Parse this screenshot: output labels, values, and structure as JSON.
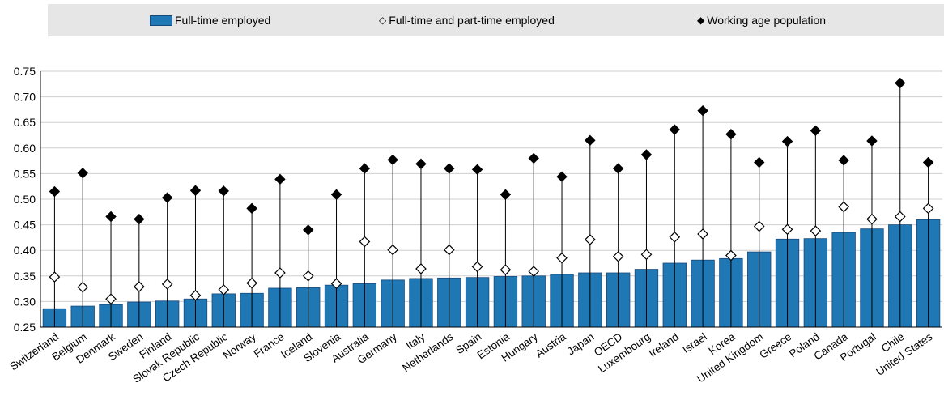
{
  "legend": {
    "series0": "Full-time employed",
    "series1": "Full-time and part-time employed",
    "series2": "Working age population"
  },
  "chart_data": {
    "type": "bar",
    "title": "",
    "xlabel": "",
    "ylabel": "",
    "ylim": [
      0.25,
      0.75
    ],
    "yticks": [
      "0.25",
      "0.30",
      "0.35",
      "0.40",
      "0.45",
      "0.50",
      "0.55",
      "0.60",
      "0.65",
      "0.70",
      "0.75"
    ],
    "grid": true,
    "legend_position": "top",
    "categories": [
      "Switzerland",
      "Belgium",
      "Denmark",
      "Sweden",
      "Finland",
      "Slovak Republic",
      "Czech Republic",
      "Norway",
      "France",
      "Iceland",
      "Slovenia",
      "Australia",
      "Germany",
      "Italy",
      "Netherlands",
      "Spain",
      "Estonia",
      "Hungary",
      "Austria",
      "Japan",
      "OECD",
      "Luxembourg",
      "Ireland",
      "Israel",
      "Korea",
      "United Kingdom",
      "Greece",
      "Poland",
      "Canada",
      "Portugal",
      "Chile",
      "United States"
    ],
    "series": [
      {
        "name": "Full-time employed",
        "mark": "bar",
        "color": "#1f77b4",
        "values": [
          0.286,
          0.291,
          0.294,
          0.299,
          0.301,
          0.305,
          0.315,
          0.316,
          0.326,
          0.327,
          0.332,
          0.335,
          0.342,
          0.345,
          0.346,
          0.347,
          0.349,
          0.35,
          0.353,
          0.356,
          0.356,
          0.363,
          0.375,
          0.381,
          0.384,
          0.397,
          0.422,
          0.423,
          0.435,
          0.442,
          0.45,
          0.46
        ]
      },
      {
        "name": "Full-time and part-time employed",
        "mark": "hollow-diamond",
        "color": "#000000",
        "values": [
          0.348,
          0.328,
          0.305,
          0.329,
          0.334,
          0.312,
          0.323,
          0.336,
          0.356,
          0.35,
          0.335,
          0.417,
          0.401,
          0.364,
          0.401,
          0.368,
          0.362,
          0.359,
          0.385,
          0.421,
          0.388,
          0.392,
          0.426,
          0.432,
          0.39,
          0.447,
          0.441,
          0.438,
          0.485,
          0.461,
          0.466,
          0.482
        ]
      },
      {
        "name": "Working age population",
        "mark": "filled-diamond",
        "color": "#000000",
        "values": [
          0.515,
          0.551,
          0.466,
          0.461,
          0.503,
          0.517,
          0.516,
          0.482,
          0.539,
          0.44,
          0.509,
          0.56,
          0.577,
          0.569,
          0.56,
          0.558,
          0.509,
          0.58,
          0.544,
          0.615,
          0.56,
          0.587,
          0.636,
          0.673,
          0.627,
          0.572,
          0.613,
          0.634,
          0.576,
          0.614,
          0.727,
          0.572
        ]
      }
    ]
  }
}
